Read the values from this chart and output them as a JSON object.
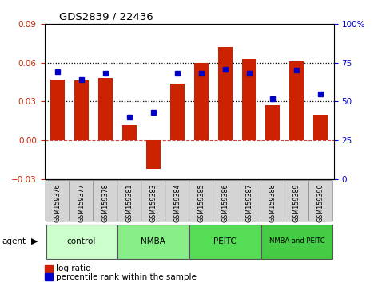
{
  "title": "GDS2839 / 22436",
  "samples": [
    "GSM159376",
    "GSM159377",
    "GSM159378",
    "GSM159381",
    "GSM159383",
    "GSM159384",
    "GSM159385",
    "GSM159386",
    "GSM159387",
    "GSM159388",
    "GSM159389",
    "GSM159390"
  ],
  "log_ratio": [
    0.047,
    0.046,
    0.048,
    0.012,
    -0.022,
    0.044,
    0.06,
    0.072,
    0.063,
    0.027,
    0.061,
    0.02
  ],
  "percentile_rank": [
    69,
    64,
    68,
    40,
    43,
    68,
    68,
    71,
    68,
    52,
    70,
    55
  ],
  "groups": [
    {
      "label": "control",
      "start": 0,
      "end": 3,
      "color": "#ccffcc"
    },
    {
      "label": "NMBA",
      "start": 3,
      "end": 6,
      "color": "#88ee88"
    },
    {
      "label": "PEITC",
      "start": 6,
      "end": 9,
      "color": "#55dd55"
    },
    {
      "label": "NMBA and PEITC",
      "start": 9,
      "end": 12,
      "color": "#44cc44"
    }
  ],
  "bar_color": "#cc2200",
  "dot_color": "#0000cc",
  "ylim_left": [
    -0.03,
    0.09
  ],
  "ylim_right": [
    0,
    100
  ],
  "yticks_left": [
    -0.03,
    0,
    0.03,
    0.06,
    0.09
  ],
  "yticks_right": [
    0,
    25,
    50,
    75,
    100
  ],
  "hlines": [
    0.03,
    0.06
  ],
  "figsize": [
    4.83,
    3.54
  ],
  "dpi": 100
}
